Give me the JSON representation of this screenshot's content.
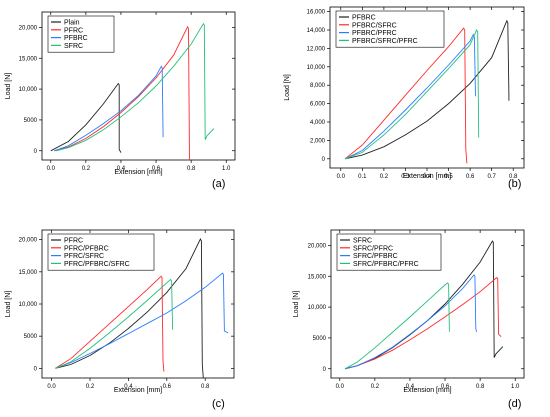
{
  "chart_data": [
    {
      "panel": "(a)",
      "type": "line",
      "xlabel": "Extension [mm]",
      "ylabel": "Load [N]",
      "xlim": [
        -0.05,
        1.05
      ],
      "ylim": [
        -1500,
        22500
      ],
      "xticks": [
        0.0,
        0.2,
        0.4,
        0.6,
        0.8,
        1.0
      ],
      "xtick_labels": [
        "0.0",
        "0.2",
        "0.4",
        "0.6",
        "0.8",
        "1.0"
      ],
      "yticks": [
        0,
        5000,
        10000,
        15000,
        20000
      ],
      "ytick_labels": [
        "0",
        "5000",
        "10,000",
        "15,000",
        "20,000"
      ],
      "legend_position": "top-left",
      "series": [
        {
          "name": "Plain",
          "color": "#222222",
          "x": [
            0.0,
            0.1,
            0.2,
            0.3,
            0.385,
            0.39,
            0.39,
            0.4
          ],
          "y": [
            0,
            1500,
            4200,
            7600,
            10900,
            10700,
            200,
            -300
          ]
        },
        {
          "name": "PFRC",
          "color": "#ff2a2a",
          "x": [
            0.02,
            0.1,
            0.2,
            0.3,
            0.4,
            0.5,
            0.6,
            0.7,
            0.78,
            0.785,
            0.79,
            0.79
          ],
          "y": [
            0,
            600,
            2000,
            3900,
            6200,
            8800,
            11800,
            15500,
            20100,
            19800,
            500,
            -1500
          ]
        },
        {
          "name": "PFBRC",
          "color": "#2a7cff",
          "x": [
            0.02,
            0.1,
            0.2,
            0.3,
            0.4,
            0.5,
            0.6,
            0.63,
            0.635,
            0.64
          ],
          "y": [
            0,
            800,
            2500,
            4400,
            6500,
            9000,
            12100,
            13700,
            13400,
            2200
          ]
        },
        {
          "name": "SFRC",
          "color": "#23c07a",
          "x": [
            0.03,
            0.1,
            0.2,
            0.3,
            0.4,
            0.5,
            0.6,
            0.7,
            0.8,
            0.87,
            0.875,
            0.88,
            0.89,
            0.93
          ],
          "y": [
            0,
            500,
            1700,
            3400,
            5500,
            7800,
            10500,
            13700,
            17300,
            20600,
            20400,
            1800,
            2400,
            3600
          ]
        }
      ]
    },
    {
      "panel": "(b)",
      "type": "line",
      "xlabel": "Extension [mm]",
      "ylabel": "Load [N]",
      "xlim": [
        -0.05,
        0.85
      ],
      "ylim": [
        -1000,
        16500
      ],
      "xticks": [
        0.0,
        0.1,
        0.2,
        0.3,
        0.4,
        0.5,
        0.6,
        0.7,
        0.8
      ],
      "xtick_labels": [
        "0.0",
        "0.1",
        "0.2",
        "0.3",
        "0.4",
        "0.5",
        "0.6",
        "0.7",
        "0.8"
      ],
      "yticks": [
        0,
        2000,
        4000,
        6000,
        8000,
        10000,
        12000,
        14000,
        16000
      ],
      "ytick_labels": [
        "0",
        "2,000",
        "4,000",
        "6,000",
        "8,000",
        "10,000",
        "12,000",
        "14,000",
        "16,000"
      ],
      "legend_position": "top-left",
      "series": [
        {
          "name": "PFBRC",
          "color": "#222222",
          "x": [
            0.02,
            0.1,
            0.2,
            0.3,
            0.4,
            0.5,
            0.6,
            0.7,
            0.77,
            0.775,
            0.78,
            0.78
          ],
          "y": [
            0,
            400,
            1300,
            2600,
            4100,
            6000,
            8200,
            11000,
            15000,
            14800,
            7000,
            6300
          ]
        },
        {
          "name": "PFBRC/SFRC",
          "color": "#ff2a2a",
          "x": [
            0.02,
            0.1,
            0.2,
            0.3,
            0.4,
            0.5,
            0.57,
            0.575,
            0.58,
            0.585
          ],
          "y": [
            0,
            1500,
            4200,
            6900,
            9600,
            12200,
            14200,
            14000,
            1000,
            -500
          ]
        },
        {
          "name": "PFBRC/PFRC",
          "color": "#2a7cff",
          "x": [
            0.02,
            0.1,
            0.2,
            0.3,
            0.4,
            0.5,
            0.6,
            0.615,
            0.62,
            0.625
          ],
          "y": [
            0,
            900,
            3000,
            5300,
            7700,
            10200,
            12800,
            13500,
            13200,
            6800
          ]
        },
        {
          "name": "PFBRC/SFRC/PFRC",
          "color": "#23c07a",
          "x": [
            0.02,
            0.1,
            0.2,
            0.3,
            0.4,
            0.5,
            0.6,
            0.63,
            0.635,
            0.64
          ],
          "y": [
            0,
            700,
            2600,
            4800,
            7300,
            9800,
            12400,
            14000,
            13800,
            2300
          ]
        }
      ]
    },
    {
      "panel": "(c)",
      "type": "line",
      "xlabel": "Extension [mm]",
      "ylabel": "Load [N]",
      "xlim": [
        -0.05,
        0.95
      ],
      "ylim": [
        -1500,
        21500
      ],
      "xticks": [
        0.0,
        0.2,
        0.4,
        0.6,
        0.8
      ],
      "xtick_labels": [
        "0.0",
        "0.2",
        "0.4",
        "0.6",
        "0.8"
      ],
      "yticks": [
        0,
        5000,
        10000,
        15000,
        20000
      ],
      "ytick_labels": [
        "0",
        "5000",
        "10,000",
        "15,000",
        "20,000"
      ],
      "legend_position": "top-left",
      "series": [
        {
          "name": "PFRC",
          "color": "#222222",
          "x": [
            0.02,
            0.1,
            0.2,
            0.3,
            0.4,
            0.5,
            0.6,
            0.7,
            0.775,
            0.78,
            0.785,
            0.79
          ],
          "y": [
            0,
            600,
            2000,
            3900,
            6200,
            8800,
            11800,
            15500,
            20100,
            19800,
            600,
            -1500
          ]
        },
        {
          "name": "PFRC/PFBRC",
          "color": "#ff2a2a",
          "x": [
            0.02,
            0.1,
            0.2,
            0.3,
            0.4,
            0.5,
            0.57,
            0.575,
            0.58,
            0.585
          ],
          "y": [
            0,
            1500,
            4200,
            6900,
            9600,
            12300,
            14300,
            14100,
            1200,
            -500
          ]
        },
        {
          "name": "PFRC/SFRC",
          "color": "#2a7cff",
          "x": [
            0.02,
            0.1,
            0.2,
            0.3,
            0.4,
            0.5,
            0.6,
            0.7,
            0.8,
            0.89,
            0.895,
            0.9,
            0.92
          ],
          "y": [
            0,
            900,
            2300,
            3800,
            5400,
            7000,
            8600,
            10500,
            12600,
            14800,
            14600,
            5800,
            5500
          ]
        },
        {
          "name": "PFRC/PFBRC/SFRC",
          "color": "#23c07a",
          "x": [
            0.02,
            0.1,
            0.2,
            0.3,
            0.4,
            0.5,
            0.6,
            0.62,
            0.625,
            0.63
          ],
          "y": [
            0,
            1000,
            3100,
            5500,
            8000,
            10600,
            13300,
            13800,
            13600,
            6000
          ]
        }
      ]
    },
    {
      "panel": "(d)",
      "type": "line",
      "xlabel": "Extension [mm]",
      "ylabel": "Load [N]",
      "xlim": [
        -0.05,
        1.05
      ],
      "ylim": [
        -1500,
        22500
      ],
      "xticks": [
        0.0,
        0.2,
        0.4,
        0.6,
        0.8,
        1.0
      ],
      "xtick_labels": [
        "0.0",
        "0.2",
        "0.4",
        "0.6",
        "0.8",
        "1.0"
      ],
      "yticks": [
        0,
        5000,
        10000,
        15000,
        20000
      ],
      "ytick_labels": [
        "0",
        "5000",
        "10,000",
        "15,000",
        "20,000"
      ],
      "legend_position": "top-left",
      "series": [
        {
          "name": "SFRC",
          "color": "#222222",
          "x": [
            0.03,
            0.1,
            0.2,
            0.3,
            0.4,
            0.5,
            0.6,
            0.7,
            0.8,
            0.87,
            0.875,
            0.88,
            0.89,
            0.93
          ],
          "y": [
            0,
            500,
            1700,
            3400,
            5500,
            7800,
            10500,
            13700,
            17300,
            20700,
            20500,
            1800,
            2400,
            3600
          ]
        },
        {
          "name": "SFRC/PFRC",
          "color": "#ff2a2a",
          "x": [
            0.03,
            0.1,
            0.2,
            0.3,
            0.4,
            0.5,
            0.6,
            0.7,
            0.8,
            0.895,
            0.9,
            0.905,
            0.92
          ],
          "y": [
            0,
            500,
            1600,
            3000,
            4700,
            6500,
            8400,
            10400,
            12500,
            14800,
            14600,
            5600,
            5200
          ]
        },
        {
          "name": "SFRC/PFBRC",
          "color": "#2a7cff",
          "x": [
            0.03,
            0.1,
            0.2,
            0.3,
            0.4,
            0.5,
            0.6,
            0.7,
            0.765,
            0.77,
            0.775,
            0.78
          ],
          "y": [
            0,
            500,
            1800,
            3500,
            5600,
            7800,
            10200,
            13000,
            15200,
            15000,
            6500,
            6000
          ]
        },
        {
          "name": "SFRC/PFBRC/PFRC",
          "color": "#23c07a",
          "x": [
            0.03,
            0.1,
            0.2,
            0.3,
            0.4,
            0.5,
            0.6,
            0.615,
            0.62,
            0.625
          ],
          "y": [
            0,
            1100,
            3400,
            5900,
            8400,
            11000,
            13600,
            13900,
            13700,
            6000
          ]
        }
      ]
    }
  ]
}
